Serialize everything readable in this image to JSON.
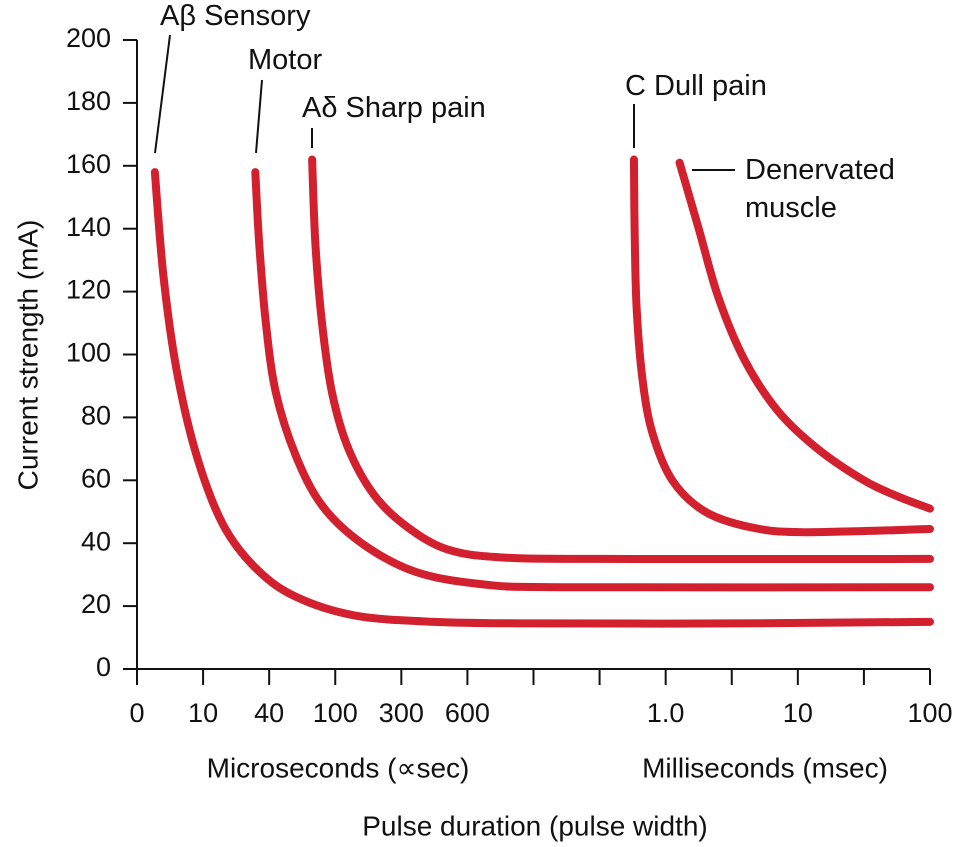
{
  "chart_data": {
    "type": "line",
    "ylabel": "Current strength (mA)",
    "xlabel": "Pulse duration (pulse width)",
    "x_sublabels": [
      "Microseconds (∝sec)",
      "Milliseconds (msec)"
    ],
    "categories": [
      "0",
      "10",
      "40",
      "100",
      "300",
      "600",
      null,
      null,
      "1.0",
      null,
      "10",
      null,
      "100"
    ],
    "ylim": [
      0,
      200
    ],
    "yticks": [
      0,
      20,
      40,
      60,
      80,
      100,
      120,
      140,
      160,
      180,
      200
    ],
    "series": [
      {
        "name": "Aβ Sensory",
        "color": "#d2202f",
        "x": [
          0.27,
          0.4,
          0.6,
          0.9,
          1.3,
          1.8,
          2.4,
          3.3,
          4.5,
          6,
          9,
          12
        ],
        "values": [
          158,
          125,
          95,
          68,
          46,
          32,
          23,
          17,
          15,
          14.5,
          14.5,
          15
        ]
      },
      {
        "name": "Motor",
        "color": "#d2202f",
        "x": [
          1.79,
          1.85,
          1.95,
          2.1,
          2.4,
          2.8,
          3.4,
          4.2,
          5.2,
          6.5,
          12
        ],
        "values": [
          158,
          135,
          110,
          88,
          68,
          52,
          40,
          31,
          27,
          26,
          26
        ]
      },
      {
        "name": "Aδ Sharp pain",
        "color": "#d2202f",
        "x": [
          2.65,
          2.7,
          2.8,
          2.95,
          3.2,
          3.6,
          4.1,
          4.7,
          5.5,
          7,
          12
        ],
        "values": [
          162,
          135,
          110,
          88,
          70,
          55,
          45,
          38,
          35.5,
          35,
          35
        ]
      },
      {
        "name": "C Dull pain",
        "color": "#d2202f",
        "x": [
          7.52,
          7.53,
          7.56,
          7.65,
          7.8,
          8.1,
          8.6,
          9.3,
          10.1,
          12
        ],
        "values": [
          162,
          140,
          115,
          92,
          75,
          60,
          50,
          45,
          43.5,
          44.5
        ]
      },
      {
        "name": "Denervated muscle",
        "color": "#d2202f",
        "x": [
          8.21,
          8.5,
          8.8,
          9.2,
          9.7,
          10.3,
          11,
          11.5,
          12
        ],
        "values": [
          161,
          140,
          118,
          98,
          82,
          70,
          60,
          55,
          51
        ]
      }
    ]
  }
}
